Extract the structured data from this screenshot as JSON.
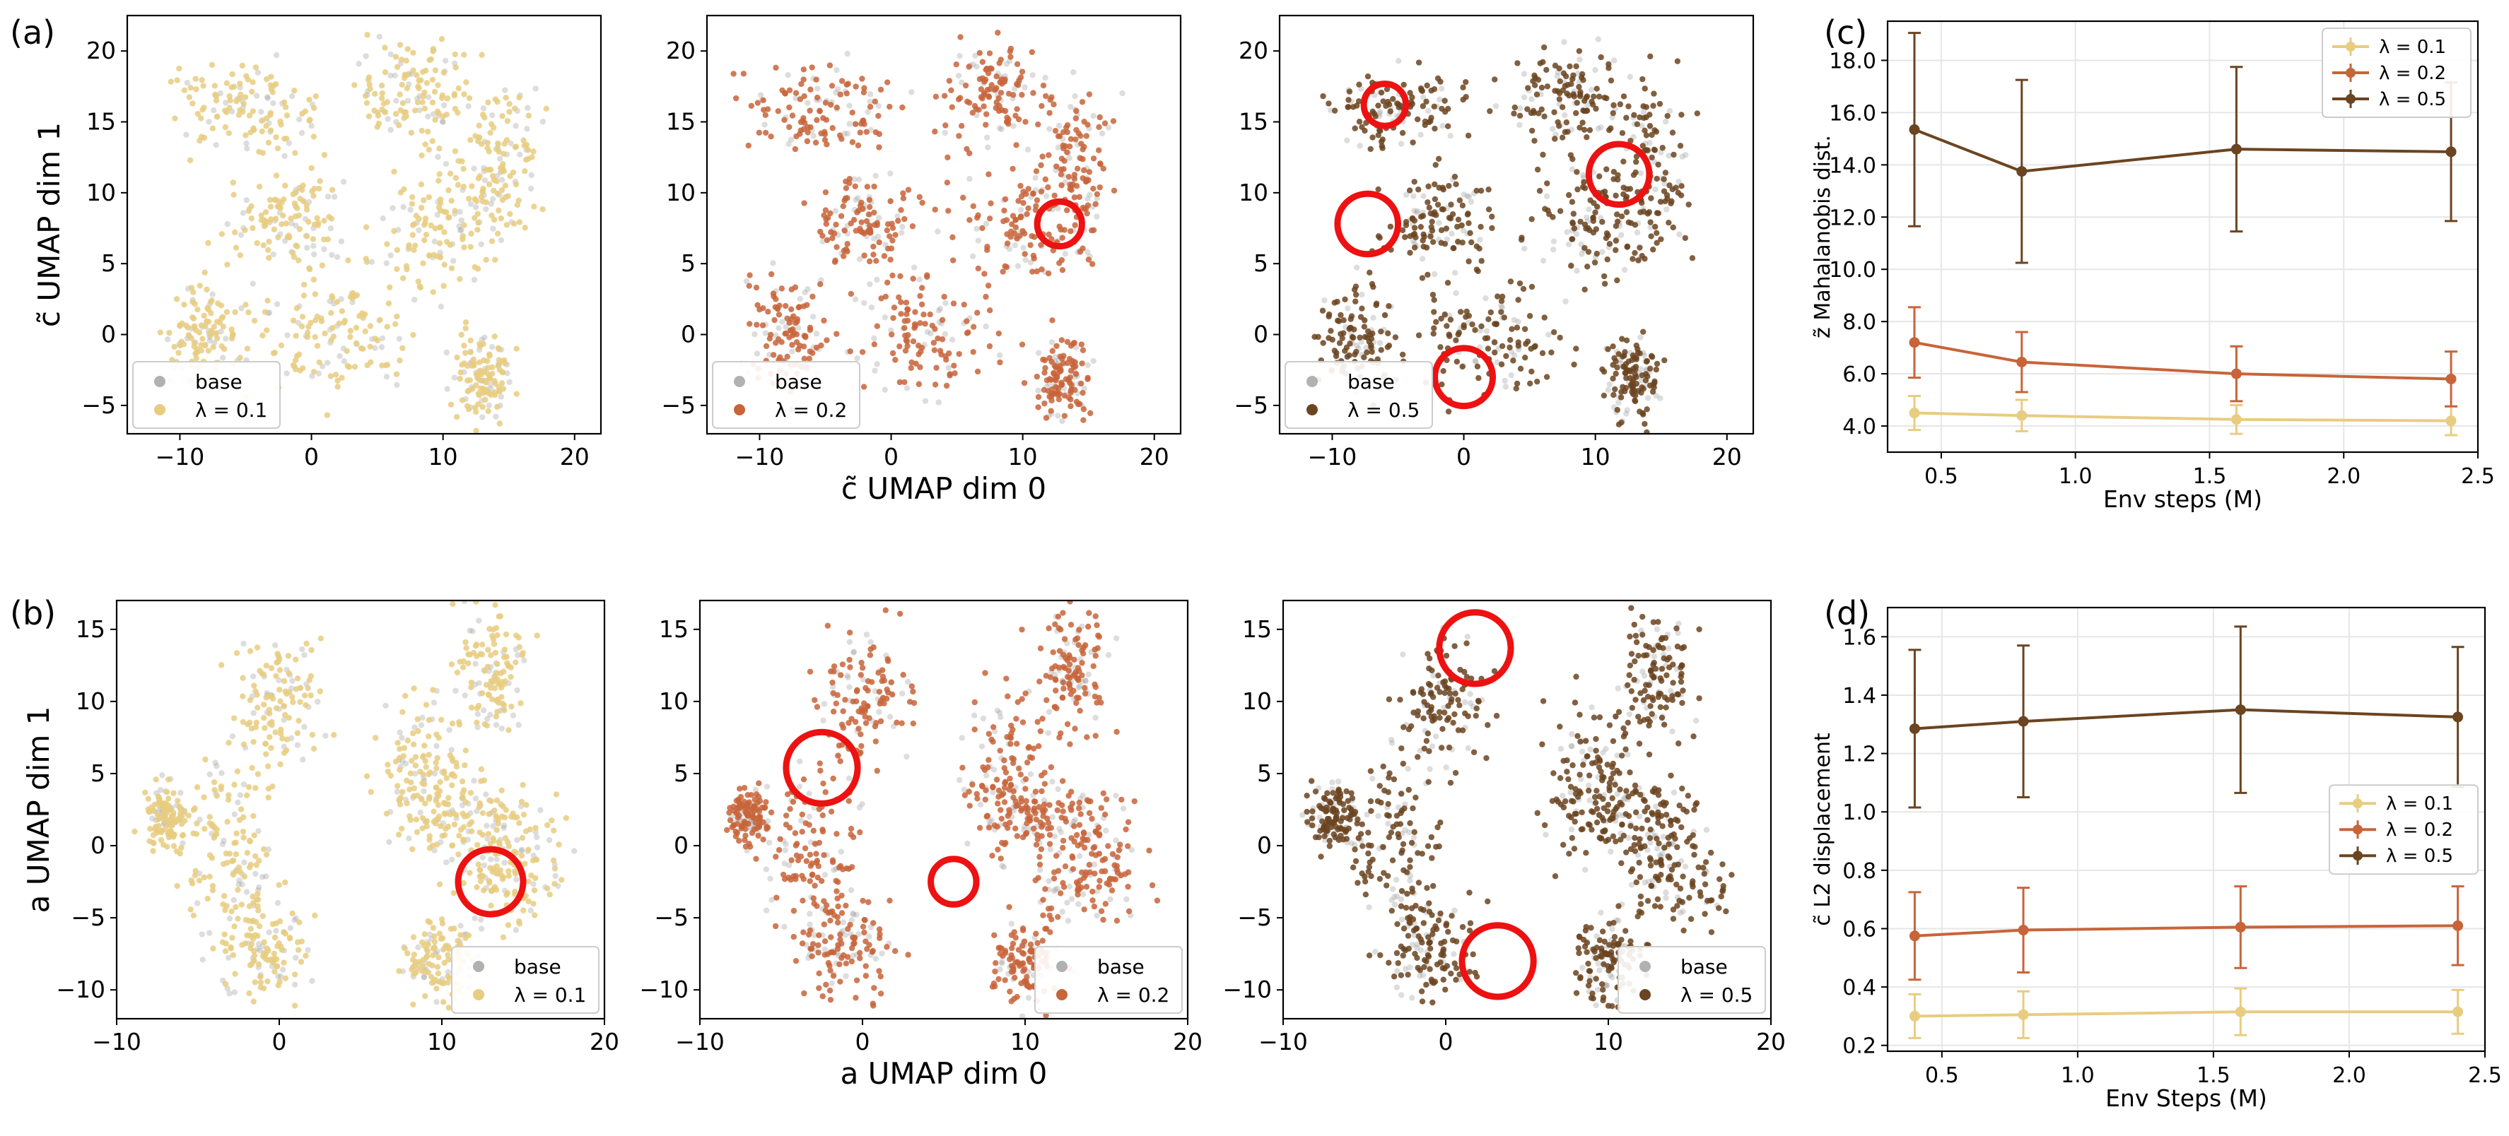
{
  "panel_labels": [
    "(a)",
    "(b)",
    "(c)",
    "(d)"
  ],
  "colors": {
    "base": "#9e9e9e",
    "lambda_0_1": "#e8cc80",
    "lambda_0_2": "#c8643a",
    "lambda_0_5": "#6b4420",
    "circle": "#ee1111",
    "grid": "#e6e6e6"
  },
  "chart_data": [
    {
      "id": "a1",
      "type": "scatter",
      "panel": "(a)",
      "xlim": [
        -14,
        22
      ],
      "ylim": [
        -7,
        22.5
      ],
      "xticks": [
        -10,
        0,
        10,
        20
      ],
      "yticks": [
        -5,
        0,
        5,
        10,
        15,
        20
      ],
      "xlabel": "",
      "ylabel": "c̃ UMAP dim 1",
      "legend": {
        "position": "lower-left",
        "entries": [
          "base",
          "λ = 0.1"
        ]
      },
      "series": [
        {
          "name": "λ = 0.1",
          "color": "#e8cc80",
          "clusters": [
            [
              -2,
              8,
              3,
              2.5
            ],
            [
              10,
              8,
              3.5,
              3
            ],
            [
              14,
              12,
              2,
              4
            ],
            [
              8,
              17,
              3,
              2.5
            ],
            [
              -5,
              16,
              4,
              2
            ],
            [
              2,
              0,
              4,
              3
            ],
            [
              13,
              -3,
              1.5,
              2
            ],
            [
              -8,
              0,
              2,
              3
            ]
          ]
        }
      ],
      "circles": []
    },
    {
      "id": "a2",
      "type": "scatter",
      "panel": "(a)",
      "xlim": [
        -14,
        22
      ],
      "ylim": [
        -7,
        22.5
      ],
      "xticks": [
        -10,
        0,
        10,
        20
      ],
      "yticks": [
        -5,
        0,
        5,
        10,
        15,
        20
      ],
      "xlabel": "c̃ UMAP dim 0",
      "ylabel": "",
      "legend": {
        "position": "lower-left",
        "entries": [
          "base",
          "λ = 0.2"
        ]
      },
      "series": [
        {
          "name": "λ = 0.2",
          "color": "#c8643a",
          "clusters": [
            [
              -2,
              8,
              3,
              2.5
            ],
            [
              10,
              8,
              3.5,
              3
            ],
            [
              14,
              12,
              2,
              4
            ],
            [
              8,
              17,
              3,
              2.5
            ],
            [
              -5,
              16,
              4,
              2
            ],
            [
              2,
              0,
              4,
              3
            ],
            [
              13,
              -3,
              1.5,
              2
            ],
            [
              -8,
              0,
              2,
              3
            ]
          ]
        }
      ],
      "circles": [
        [
          12.8,
          7.8,
          1.7
        ]
      ]
    },
    {
      "id": "a3",
      "type": "scatter",
      "panel": "(a)",
      "xlim": [
        -14,
        22
      ],
      "ylim": [
        -7,
        22.5
      ],
      "xticks": [
        -10,
        0,
        10,
        20
      ],
      "yticks": [
        -5,
        0,
        5,
        10,
        15,
        20
      ],
      "xlabel": "",
      "ylabel": "",
      "legend": {
        "position": "lower-left",
        "entries": [
          "base",
          "λ = 0.5"
        ]
      },
      "series": [
        {
          "name": "λ = 0.5",
          "color": "#6b4420",
          "clusters": [
            [
              -2,
              8,
              3,
              2.5
            ],
            [
              10,
              8,
              3.5,
              3
            ],
            [
              14,
              12,
              2,
              4
            ],
            [
              8,
              17,
              3,
              2.5
            ],
            [
              -5,
              16,
              4,
              2
            ],
            [
              2,
              0,
              4,
              3
            ],
            [
              13,
              -3,
              1.5,
              2
            ],
            [
              -8,
              0,
              2,
              3
            ]
          ]
        }
      ],
      "circles": [
        [
          -6,
          16.2,
          1.6
        ],
        [
          -7.3,
          7.8,
          2.3
        ],
        [
          11.8,
          11.3,
          2.3
        ],
        [
          0,
          -3,
          2.2
        ]
      ]
    },
    {
      "id": "c",
      "type": "line",
      "panel": "(c)",
      "x": [
        0.4,
        0.8,
        1.6,
        2.4
      ],
      "xlim": [
        0.3,
        2.5
      ],
      "ylim": [
        3,
        19.5
      ],
      "xticks": [
        0.5,
        1.0,
        1.5,
        2.0,
        2.5
      ],
      "yticks": [
        4,
        6,
        8,
        10,
        12,
        14,
        16,
        18
      ],
      "xlabel": "Env steps (M)",
      "ylabel": "z̃ Mahalanobis dist.",
      "legend": {
        "position": "top-right"
      },
      "grid": true,
      "series": [
        {
          "name": "λ = 0.1",
          "color": "#e8cc80",
          "values": [
            4.5,
            4.4,
            4.25,
            4.2
          ],
          "err": [
            0.65,
            0.6,
            0.55,
            0.55
          ]
        },
        {
          "name": "λ = 0.2",
          "color": "#c8643a",
          "values": [
            7.2,
            6.45,
            6.0,
            5.8
          ],
          "err": [
            1.35,
            1.15,
            1.05,
            1.05
          ]
        },
        {
          "name": "λ = 0.5",
          "color": "#6b4420",
          "values": [
            15.35,
            13.75,
            14.6,
            14.5
          ],
          "err": [
            3.7,
            3.5,
            3.15,
            2.65
          ]
        }
      ]
    },
    {
      "id": "b1",
      "type": "scatter",
      "panel": "(b)",
      "xlim": [
        -10,
        20
      ],
      "ylim": [
        -12,
        17
      ],
      "xticks": [
        -10,
        0,
        10,
        20
      ],
      "yticks": [
        -10,
        -5,
        0,
        5,
        10,
        15
      ],
      "xlabel": "",
      "ylabel": "a UMAP dim 1",
      "legend": {
        "position": "lower-right",
        "entries": [
          "base",
          "λ = 0.1"
        ]
      },
      "series": [
        {
          "name": "λ = 0.1",
          "color": "#e8cc80",
          "clusters": [
            [
              -7,
              2,
              1,
              1.5
            ],
            [
              -3,
              0,
              2,
              4
            ],
            [
              14,
              -2,
              2.5,
              2.5
            ],
            [
              12,
              2,
              3,
              2
            ],
            [
              13,
              12,
              1.5,
              3
            ],
            [
              0,
              10,
              2,
              3
            ],
            [
              -1,
              -7,
              2,
              2.5
            ],
            [
              10,
              -8,
              1.5,
              2
            ],
            [
              9,
              5,
              2,
              4
            ]
          ]
        }
      ],
      "circles": [
        [
          13,
          -2.5,
          2
        ]
      ]
    },
    {
      "id": "b2",
      "type": "scatter",
      "panel": "(b)",
      "xlim": [
        -10,
        20
      ],
      "ylim": [
        -12,
        17
      ],
      "xticks": [
        -10,
        0,
        10,
        20
      ],
      "yticks": [
        -10,
        -5,
        0,
        5,
        10,
        15
      ],
      "xlabel": "a UMAP dim 0",
      "ylabel": "",
      "legend": {
        "position": "lower-right",
        "entries": [
          "base",
          "λ = 0.2"
        ]
      },
      "series": [
        {
          "name": "λ = 0.2",
          "color": "#c8643a",
          "clusters": [
            [
              -7,
              2,
              1,
              1.5
            ],
            [
              -3,
              0,
              2,
              4
            ],
            [
              14,
              -2,
              2.5,
              2.5
            ],
            [
              12,
              2,
              3,
              2
            ],
            [
              13,
              12,
              1.5,
              3
            ],
            [
              0,
              10,
              2,
              3
            ],
            [
              -1,
              -7,
              2,
              2.5
            ],
            [
              10,
              -8,
              1.5,
              2
            ],
            [
              9,
              5,
              2,
              4
            ]
          ]
        }
      ],
      "circles": [
        [
          -2.5,
          5.4,
          2.2
        ],
        [
          5.6,
          -2.5,
          1.4
        ]
      ]
    },
    {
      "id": "b3",
      "type": "scatter",
      "panel": "(b)",
      "xlim": [
        -10,
        20
      ],
      "ylim": [
        -12,
        17
      ],
      "xticks": [
        -10,
        0,
        10,
        20
      ],
      "yticks": [
        -10,
        -5,
        0,
        5,
        10,
        15
      ],
      "xlabel": "",
      "ylabel": "",
      "legend": {
        "position": "lower-right",
        "entries": [
          "base",
          "λ = 0.5"
        ]
      },
      "series": [
        {
          "name": "λ = 0.5",
          "color": "#6b4420",
          "clusters": [
            [
              -7,
              2,
              1,
              1.5
            ],
            [
              -3,
              0,
              2,
              4
            ],
            [
              14,
              -2,
              2.5,
              2.5
            ],
            [
              12,
              2,
              3,
              2
            ],
            [
              13,
              12,
              1.5,
              3
            ],
            [
              0,
              10,
              2,
              3
            ],
            [
              -1,
              -7,
              2,
              2.5
            ],
            [
              10,
              -8,
              1.5,
              2
            ],
            [
              9,
              5,
              2,
              4
            ]
          ]
        }
      ],
      "circles": [
        [
          1.8,
          13.7,
          2.2
        ],
        [
          3.2,
          -8,
          2.2
        ]
      ]
    },
    {
      "id": "d",
      "type": "line",
      "panel": "(d)",
      "x": [
        0.4,
        0.8,
        1.6,
        2.4
      ],
      "xlim": [
        0.3,
        2.5
      ],
      "ylim": [
        0.18,
        1.7
      ],
      "xticks": [
        0.5,
        1.0,
        1.5,
        2.0,
        2.5
      ],
      "yticks": [
        0.2,
        0.4,
        0.6,
        0.8,
        1.0,
        1.2,
        1.4,
        1.6
      ],
      "xlabel": "Env Steps (M)",
      "ylabel": "c̃ L2 displacement",
      "legend": {
        "position": "center-right"
      },
      "grid": true,
      "series": [
        {
          "name": "λ = 0.1",
          "color": "#e8cc80",
          "values": [
            0.3,
            0.305,
            0.315,
            0.315
          ],
          "err": [
            0.075,
            0.08,
            0.08,
            0.075
          ]
        },
        {
          "name": "λ = 0.2",
          "color": "#c8643a",
          "values": [
            0.575,
            0.595,
            0.605,
            0.61
          ],
          "err": [
            0.15,
            0.145,
            0.14,
            0.135
          ]
        },
        {
          "name": "λ = 0.5",
          "color": "#6b4420",
          "values": [
            1.285,
            1.31,
            1.35,
            1.325
          ],
          "err": [
            0.27,
            0.26,
            0.285,
            0.24
          ]
        }
      ]
    }
  ]
}
